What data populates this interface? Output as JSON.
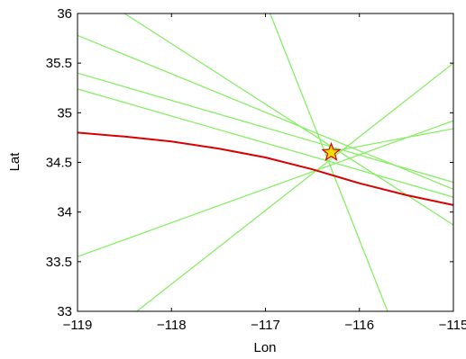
{
  "chart_data": {
    "type": "line",
    "title": "",
    "xlabel": "Lon",
    "ylabel": "Lat",
    "xlim": [
      -119,
      -115
    ],
    "ylim": [
      33,
      36
    ],
    "xticks": [
      -119,
      -118,
      -117,
      -116,
      -115
    ],
    "xtick_labels": [
      "−119",
      "−118",
      "−117",
      "−116",
      "−115"
    ],
    "yticks": [
      33,
      33.5,
      34,
      34.5,
      35,
      35.5,
      36
    ],
    "ytick_labels": [
      "33",
      "33.5",
      "34",
      "34.5",
      "35",
      "35.5",
      "36"
    ],
    "grid": false,
    "series": [
      {
        "color": "#d80000",
        "style": "curve",
        "points": [
          [
            -119,
            34.8
          ],
          [
            -118.5,
            34.76
          ],
          [
            -118,
            34.71
          ],
          [
            -117.5,
            34.64
          ],
          [
            -117,
            34.55
          ],
          [
            -116.5,
            34.43
          ],
          [
            -116,
            34.29
          ],
          [
            -115.5,
            34.17
          ],
          [
            -115,
            34.07
          ]
        ]
      },
      {
        "color": "#88ee66",
        "points": [
          [
            -118.5,
            36.0
          ],
          [
            -115,
            33.87
          ]
        ]
      },
      {
        "color": "#88ee66",
        "points": [
          [
            -119,
            35.78
          ],
          [
            -115,
            34.23
          ]
        ]
      },
      {
        "color": "#88ee66",
        "points": [
          [
            -119,
            35.4
          ],
          [
            -115,
            34.3
          ]
        ]
      },
      {
        "color": "#88ee66",
        "points": [
          [
            -119,
            35.24
          ],
          [
            -115,
            34.15
          ]
        ]
      },
      {
        "color": "#88ee66",
        "points": [
          [
            -119,
            33.55
          ],
          [
            -115,
            34.92
          ]
        ]
      },
      {
        "color": "#88ee66",
        "points": [
          [
            -118.37,
            33.0
          ],
          [
            -115,
            35.5
          ]
        ]
      },
      {
        "color": "#88ee66",
        "points": [
          [
            -116.35,
            34.6
          ],
          [
            -115,
            34.84
          ]
        ]
      },
      {
        "color": "#88ee66",
        "points": [
          [
            -116.95,
            36.0
          ],
          [
            -115.7,
            33.0
          ]
        ]
      }
    ],
    "marker": {
      "type": "star",
      "x": -116.3,
      "y": 34.6,
      "fill": "#f2dd00",
      "stroke": "#d80000"
    }
  }
}
